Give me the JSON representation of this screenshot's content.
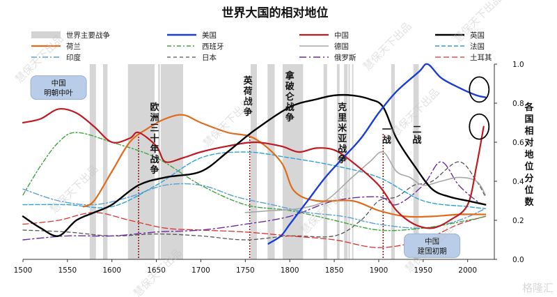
{
  "chart_data": {
    "type": "line",
    "title": "世界大国的相对地位",
    "ylabel": "各国相对地位分位数",
    "xlim": [
      1500,
      2030
    ],
    "ylim": [
      0,
      1.0
    ],
    "x_ticks": [
      1500,
      1550,
      1600,
      1650,
      1700,
      1750,
      1800,
      1850,
      1900,
      1950,
      2000
    ],
    "y_ticks": [
      "0.0",
      "0.2",
      "0.4",
      "0.6",
      "0.8",
      "1.0"
    ],
    "war_legend_label": "世界主要战争",
    "war_periods": [
      {
        "from": 1575,
        "to": 1582
      },
      {
        "from": 1590,
        "to": 1595
      },
      {
        "from": 1618,
        "to": 1648
      },
      {
        "from": 1652,
        "to": 1654
      },
      {
        "from": 1655,
        "to": 1680
      },
      {
        "from": 1756,
        "to": 1763
      },
      {
        "from": 1775,
        "to": 1783
      },
      {
        "from": 1792,
        "to": 1815
      },
      {
        "from": 1838,
        "to": 1842
      },
      {
        "from": 1853,
        "to": 1856
      },
      {
        "from": 1861,
        "to": 1865
      },
      {
        "from": 1866,
        "to": 1867
      },
      {
        "from": 1870,
        "to": 1871
      },
      {
        "from": 1914,
        "to": 1918
      },
      {
        "from": 1939,
        "to": 1945
      }
    ],
    "war_labels": [
      {
        "text": "欧洲三十年战争",
        "x": 1648
      },
      {
        "text": "英荷战争",
        "x": 1753
      },
      {
        "text": "拿破仑战争",
        "x": 1800
      },
      {
        "text": "克里米亚战争",
        "x": 1859
      },
      {
        "text": "一战",
        "x": 1909
      },
      {
        "text": "二战",
        "x": 1943
      }
    ],
    "dotted_lines": [
      1630,
      1755,
      1905
    ],
    "annotations": [
      {
        "text": [
          "中国",
          "明朝中叶"
        ],
        "x": 1540,
        "y": 0.88
      },
      {
        "text": [
          "中国",
          "建国初期"
        ],
        "x": 1960,
        "y": 0.07
      }
    ],
    "series": [
      {
        "name": "美国",
        "color": "#1a3fd6",
        "dash": "solid",
        "width": 2.4,
        "points": [
          [
            1776,
            0.08
          ],
          [
            1790,
            0.12
          ],
          [
            1800,
            0.18
          ],
          [
            1820,
            0.3
          ],
          [
            1840,
            0.42
          ],
          [
            1860,
            0.52
          ],
          [
            1880,
            0.62
          ],
          [
            1900,
            0.75
          ],
          [
            1920,
            0.86
          ],
          [
            1945,
            0.96
          ],
          [
            1955,
            1.0
          ],
          [
            1970,
            0.93
          ],
          [
            1990,
            0.88
          ],
          [
            2010,
            0.84
          ],
          [
            2020,
            0.83
          ]
        ]
      },
      {
        "name": "中国",
        "color": "#c0191f",
        "dash": "solid",
        "width": 2.2,
        "points": [
          [
            1500,
            0.7
          ],
          [
            1520,
            0.72
          ],
          [
            1540,
            0.77
          ],
          [
            1560,
            0.75
          ],
          [
            1580,
            0.68
          ],
          [
            1600,
            0.6
          ],
          [
            1620,
            0.62
          ],
          [
            1630,
            0.65
          ],
          [
            1650,
            0.58
          ],
          [
            1660,
            0.5
          ],
          [
            1680,
            0.52
          ],
          [
            1700,
            0.55
          ],
          [
            1730,
            0.58
          ],
          [
            1760,
            0.6
          ],
          [
            1790,
            0.58
          ],
          [
            1810,
            0.55
          ],
          [
            1830,
            0.57
          ],
          [
            1850,
            0.56
          ],
          [
            1870,
            0.5
          ],
          [
            1900,
            0.38
          ],
          [
            1920,
            0.25
          ],
          [
            1940,
            0.18
          ],
          [
            1960,
            0.16
          ],
          [
            1980,
            0.2
          ],
          [
            2000,
            0.28
          ],
          [
            2010,
            0.48
          ],
          [
            2018,
            0.68
          ]
        ]
      },
      {
        "name": "英国",
        "color": "#000000",
        "dash": "solid",
        "width": 2.4,
        "points": [
          [
            1500,
            0.22
          ],
          [
            1520,
            0.16
          ],
          [
            1540,
            0.12
          ],
          [
            1560,
            0.2
          ],
          [
            1580,
            0.24
          ],
          [
            1600,
            0.28
          ],
          [
            1630,
            0.38
          ],
          [
            1660,
            0.42
          ],
          [
            1700,
            0.45
          ],
          [
            1730,
            0.55
          ],
          [
            1760,
            0.66
          ],
          [
            1800,
            0.78
          ],
          [
            1830,
            0.82
          ],
          [
            1850,
            0.84
          ],
          [
            1870,
            0.84
          ],
          [
            1890,
            0.82
          ],
          [
            1905,
            0.78
          ],
          [
            1920,
            0.62
          ],
          [
            1940,
            0.48
          ],
          [
            1960,
            0.36
          ],
          [
            1980,
            0.32
          ],
          [
            2000,
            0.3
          ],
          [
            2020,
            0.28
          ]
        ]
      },
      {
        "name": "荷兰",
        "color": "#e06b1a",
        "dash": "solid",
        "width": 2.2,
        "points": [
          [
            1568,
            0.27
          ],
          [
            1580,
            0.3
          ],
          [
            1600,
            0.45
          ],
          [
            1620,
            0.6
          ],
          [
            1640,
            0.67
          ],
          [
            1660,
            0.72
          ],
          [
            1680,
            0.74
          ],
          [
            1700,
            0.7
          ],
          [
            1730,
            0.65
          ],
          [
            1760,
            0.62
          ],
          [
            1790,
            0.5
          ],
          [
            1805,
            0.35
          ],
          [
            1830,
            0.3
          ],
          [
            1870,
            0.3
          ],
          [
            1900,
            0.25
          ],
          [
            1930,
            0.22
          ],
          [
            1960,
            0.22
          ],
          [
            1990,
            0.23
          ],
          [
            2020,
            0.23
          ]
        ]
      },
      {
        "name": "德国",
        "color": "#a8a8a8",
        "dash": "solid",
        "width": 1.6,
        "points": [
          [
            1750,
            0.24
          ],
          [
            1780,
            0.25
          ],
          [
            1810,
            0.26
          ],
          [
            1840,
            0.3
          ],
          [
            1870,
            0.42
          ],
          [
            1890,
            0.5
          ],
          [
            1905,
            0.55
          ],
          [
            1920,
            0.45
          ],
          [
            1935,
            0.42
          ],
          [
            1950,
            0.38
          ],
          [
            1970,
            0.4
          ],
          [
            1990,
            0.42
          ],
          [
            2010,
            0.4
          ],
          [
            2020,
            0.33
          ]
        ]
      },
      {
        "name": "法国",
        "color": "#2aa3d9",
        "dash": "6,3",
        "width": 1.4,
        "points": [
          [
            1500,
            0.28
          ],
          [
            1550,
            0.28
          ],
          [
            1600,
            0.27
          ],
          [
            1650,
            0.38
          ],
          [
            1700,
            0.52
          ],
          [
            1750,
            0.55
          ],
          [
            1800,
            0.52
          ],
          [
            1850,
            0.48
          ],
          [
            1900,
            0.42
          ],
          [
            1950,
            0.3
          ],
          [
            2000,
            0.27
          ],
          [
            2020,
            0.26
          ]
        ]
      },
      {
        "name": "西班牙",
        "color": "#3da63d",
        "dash": "6,3,2,3",
        "width": 1.4,
        "points": [
          [
            1500,
            0.33
          ],
          [
            1520,
            0.48
          ],
          [
            1540,
            0.6
          ],
          [
            1560,
            0.65
          ],
          [
            1600,
            0.6
          ],
          [
            1650,
            0.52
          ],
          [
            1700,
            0.38
          ],
          [
            1750,
            0.28
          ],
          [
            1800,
            0.25
          ],
          [
            1850,
            0.2
          ],
          [
            1900,
            0.15
          ],
          [
            1950,
            0.16
          ],
          [
            2000,
            0.2
          ],
          [
            2020,
            0.22
          ]
        ]
      },
      {
        "name": "印度",
        "color": "#5aa0d8",
        "dash": "8,3,2,3",
        "width": 1.4,
        "points": [
          [
            1500,
            0.36
          ],
          [
            1540,
            0.3
          ],
          [
            1580,
            0.28
          ],
          [
            1620,
            0.32
          ],
          [
            1660,
            0.38
          ],
          [
            1700,
            0.38
          ],
          [
            1740,
            0.32
          ],
          [
            1780,
            0.28
          ],
          [
            1820,
            0.24
          ],
          [
            1860,
            0.22
          ],
          [
            1900,
            0.18
          ],
          [
            1950,
            0.16
          ],
          [
            1990,
            0.2
          ],
          [
            2020,
            0.26
          ]
        ]
      },
      {
        "name": "日本",
        "color": "#555555",
        "dash": "5,4",
        "width": 1.3,
        "points": [
          [
            1500,
            0.15
          ],
          [
            1550,
            0.14
          ],
          [
            1600,
            0.12
          ],
          [
            1650,
            0.13
          ],
          [
            1700,
            0.12
          ],
          [
            1750,
            0.1
          ],
          [
            1800,
            0.12
          ],
          [
            1850,
            0.12
          ],
          [
            1880,
            0.2
          ],
          [
            1900,
            0.3
          ],
          [
            1920,
            0.32
          ],
          [
            1940,
            0.38
          ],
          [
            1960,
            0.4
          ],
          [
            1990,
            0.5
          ],
          [
            2010,
            0.4
          ],
          [
            2020,
            0.32
          ]
        ]
      },
      {
        "name": "俄罗斯",
        "color": "#6a2ca0",
        "dash": "10,4,2,4",
        "width": 1.4,
        "points": [
          [
            1500,
            0.1
          ],
          [
            1550,
            0.12
          ],
          [
            1600,
            0.12
          ],
          [
            1650,
            0.14
          ],
          [
            1700,
            0.15
          ],
          [
            1750,
            0.18
          ],
          [
            1800,
            0.22
          ],
          [
            1850,
            0.3
          ],
          [
            1900,
            0.32
          ],
          [
            1920,
            0.28
          ],
          [
            1950,
            0.38
          ],
          [
            1970,
            0.5
          ],
          [
            1990,
            0.38
          ],
          [
            2010,
            0.3
          ],
          [
            2020,
            0.28
          ]
        ]
      },
      {
        "name": "土耳其",
        "color": "#e03030",
        "dash": "8,4",
        "width": 1.3,
        "points": [
          [
            1500,
            0.18
          ],
          [
            1540,
            0.2
          ],
          [
            1580,
            0.24
          ],
          [
            1620,
            0.2
          ],
          [
            1660,
            0.16
          ],
          [
            1700,
            0.15
          ],
          [
            1750,
            0.14
          ],
          [
            1800,
            0.12
          ],
          [
            1850,
            0.1
          ],
          [
            1900,
            0.06
          ],
          [
            1950,
            0.1
          ],
          [
            1990,
            0.18
          ],
          [
            2020,
            0.22
          ]
        ]
      }
    ],
    "legend_layout": [
      [
        "世界主要战争",
        "美国",
        "中国",
        "英国"
      ],
      [
        "荷兰",
        "西班牙",
        "德国",
        "法国"
      ],
      [
        "印度",
        "日本",
        "俄罗斯",
        "土耳其"
      ]
    ],
    "highlight_circles": [
      {
        "x": 2013,
        "y": 0.87
      },
      {
        "x": 2013,
        "y": 0.68
      }
    ]
  },
  "watermark": "慧保天下出品",
  "brand": "格隆汇"
}
